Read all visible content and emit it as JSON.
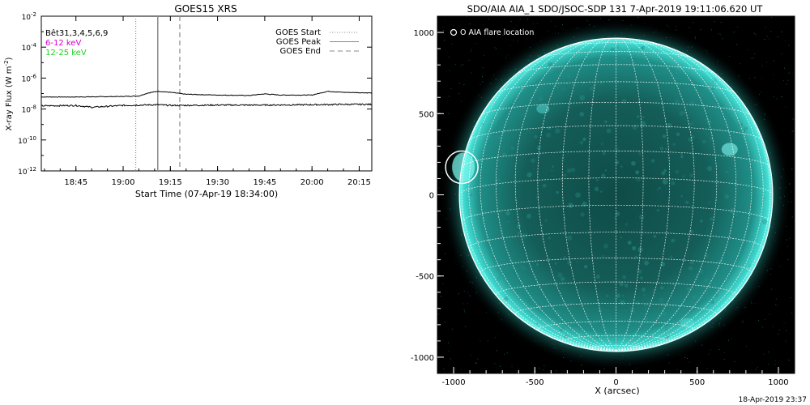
{
  "chart_data": [
    {
      "type": "line",
      "title": "GOES15 XRS",
      "xlabel": "Start Time (07-Apr-19 18:34:00)",
      "ylabel": "X-ray Flux (W m",
      "ylabel_sup": "-2",
      "ylabel_end": ")",
      "y_scale": "log",
      "ylim": [
        1e-12,
        0.01
      ],
      "xlim": [
        "18:34",
        "20:19"
      ],
      "x_ticks": [
        "18:45",
        "19:00",
        "19:15",
        "19:30",
        "19:45",
        "20:00",
        "20:15"
      ],
      "y_ticks": [
        {
          "base": "10",
          "exp": "-2"
        },
        {
          "base": "10",
          "exp": "-4"
        },
        {
          "base": "10",
          "exp": "-6"
        },
        {
          "base": "10",
          "exp": "-8"
        },
        {
          "base": "10",
          "exp": "-10"
        },
        {
          "base": "10",
          "exp": "-12"
        }
      ],
      "info_lines": [
        {
          "text": "Bêt31,3,4,5,6,9",
          "color": "#000000"
        },
        {
          "text": "6-12 keV",
          "color": "#d000d0"
        },
        {
          "text": "12-25 keV",
          "color": "#20d020"
        }
      ],
      "legend_position": "top-right",
      "legend": [
        {
          "label": "GOES Start",
          "style": "dotted"
        },
        {
          "label": "GOES Peak",
          "style": "solid"
        },
        {
          "label": "GOES End",
          "style": "dashed"
        }
      ],
      "vlines": {
        "start": "19:04",
        "peak": "19:11",
        "end": "19:18"
      },
      "series": [
        {
          "color": "#000000",
          "x": [
            "18:34",
            "18:45",
            "19:00",
            "19:05",
            "19:08",
            "19:11",
            "19:15",
            "19:20",
            "19:30",
            "19:40",
            "19:45",
            "19:50",
            "20:00",
            "20:05",
            "20:10",
            "20:19"
          ],
          "values": [
            6e-08,
            6e-08,
            6.5e-08,
            7e-08,
            1.1e-07,
            1.4e-07,
            1.2e-07,
            9e-08,
            8e-08,
            7.5e-08,
            9.5e-08,
            8e-08,
            8e-08,
            1.4e-07,
            1.2e-07,
            1.1e-07
          ]
        },
        {
          "color": "#000000",
          "x": [
            "18:34",
            "18:45",
            "18:50",
            "19:00",
            "19:11",
            "19:15",
            "19:30",
            "19:45",
            "20:00",
            "20:10",
            "20:19"
          ],
          "values": [
            1.6e-08,
            1.7e-08,
            1.3e-08,
            1.7e-08,
            1.9e-08,
            1.7e-08,
            1.8e-08,
            1.8e-08,
            1.9e-08,
            2e-08,
            2e-08
          ]
        }
      ]
    },
    {
      "type": "scatter",
      "title": "SDO/AIA AIA_1 SDO/JSOC-SDP 131  7-Apr-2019 19:11:06.620 UT",
      "xlabel": "X (arcsec)",
      "ylabel": "",
      "xlim": [
        -1100,
        1100
      ],
      "ylim": [
        -1100,
        1100
      ],
      "x_ticks": [
        "-1000",
        "-500",
        "0",
        "500",
        "1000"
      ],
      "y_ticks": [
        "1000",
        "500",
        "0",
        "-500",
        "-1000"
      ],
      "legend": [
        "O AIA flare location"
      ],
      "flare_location": {
        "x": -950,
        "y": 170
      },
      "solar_radius": 965,
      "grid_spacing_deg": 10,
      "image_color": "#35e6da",
      "background": "#000000"
    }
  ],
  "footer": {
    "timestamp": "18-Apr-2019 23:37"
  }
}
